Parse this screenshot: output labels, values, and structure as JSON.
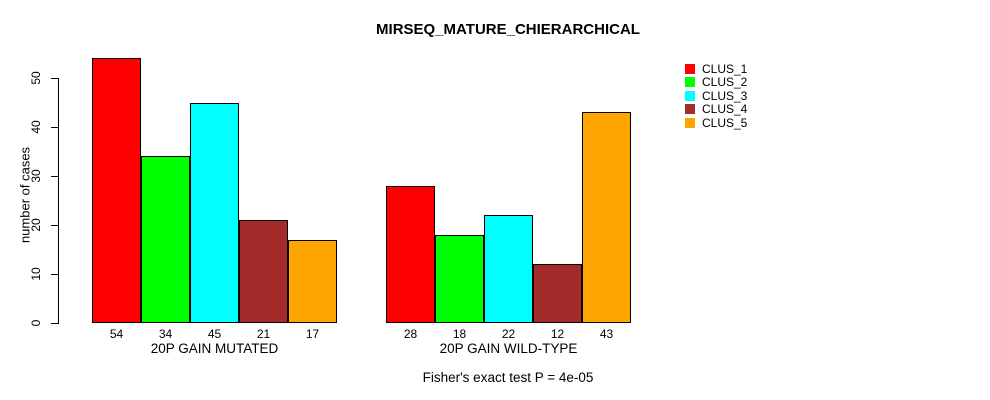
{
  "page": {
    "background_color": "#ffffff",
    "text_color": "#000000"
  },
  "chart_data": {
    "type": "bar",
    "title": "MIRSEQ_MATURE_CHIERARCHICAL",
    "ylabel": "number of cases",
    "xlabel": "",
    "ylim": [
      0,
      50
    ],
    "yticks": [
      "0",
      "10",
      "20",
      "30",
      "40",
      "50"
    ],
    "grid": false,
    "legend_position": "top-right",
    "bar_value_labels_shown": true,
    "categories": [
      "20P GAIN MUTATED",
      "20P GAIN WILD-TYPE"
    ],
    "series": [
      {
        "name": "CLUS_1",
        "color": "#FF0000",
        "values": [
          54,
          28
        ]
      },
      {
        "name": "CLUS_2",
        "color": "#00FF00",
        "values": [
          34,
          18
        ]
      },
      {
        "name": "CLUS_3",
        "color": "#00FFFF",
        "values": [
          45,
          22
        ]
      },
      {
        "name": "CLUS_4",
        "color": "#A52A2A",
        "values": [
          21,
          12
        ]
      },
      {
        "name": "CLUS_5",
        "color": "#FFA500",
        "values": [
          17,
          43
        ]
      }
    ],
    "annotation": "Fisher's exact test P = 4e-05"
  }
}
